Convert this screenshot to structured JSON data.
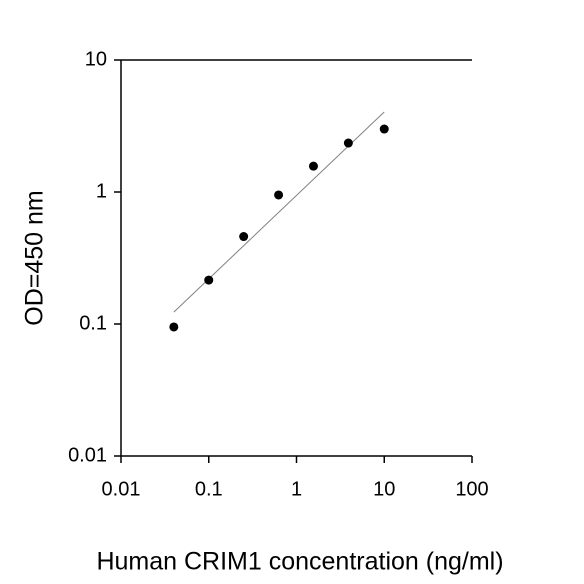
{
  "chart_data": {
    "type": "scatter",
    "x_label": "Human CRIM1 concentration (ng/ml)",
    "y_label": "OD=450 nm",
    "x": [
      0.04,
      0.1,
      0.25,
      0.625,
      1.56,
      3.9,
      10
    ],
    "values": [
      0.095,
      0.215,
      0.46,
      0.95,
      1.57,
      2.35,
      3.0
    ],
    "color": "#000000",
    "trendline": {
      "x": [
        0.04,
        10
      ],
      "values": [
        0.123,
        4.04
      ],
      "color": "#808080"
    },
    "xlim": [
      0.01,
      100
    ],
    "ylim": [
      0.01,
      10
    ],
    "xticks": [
      0.01,
      0.1,
      1,
      10,
      100
    ],
    "yticks": [
      0.01,
      0.1,
      1,
      10
    ],
    "log_x": true,
    "log_y": true,
    "grid": false
  }
}
